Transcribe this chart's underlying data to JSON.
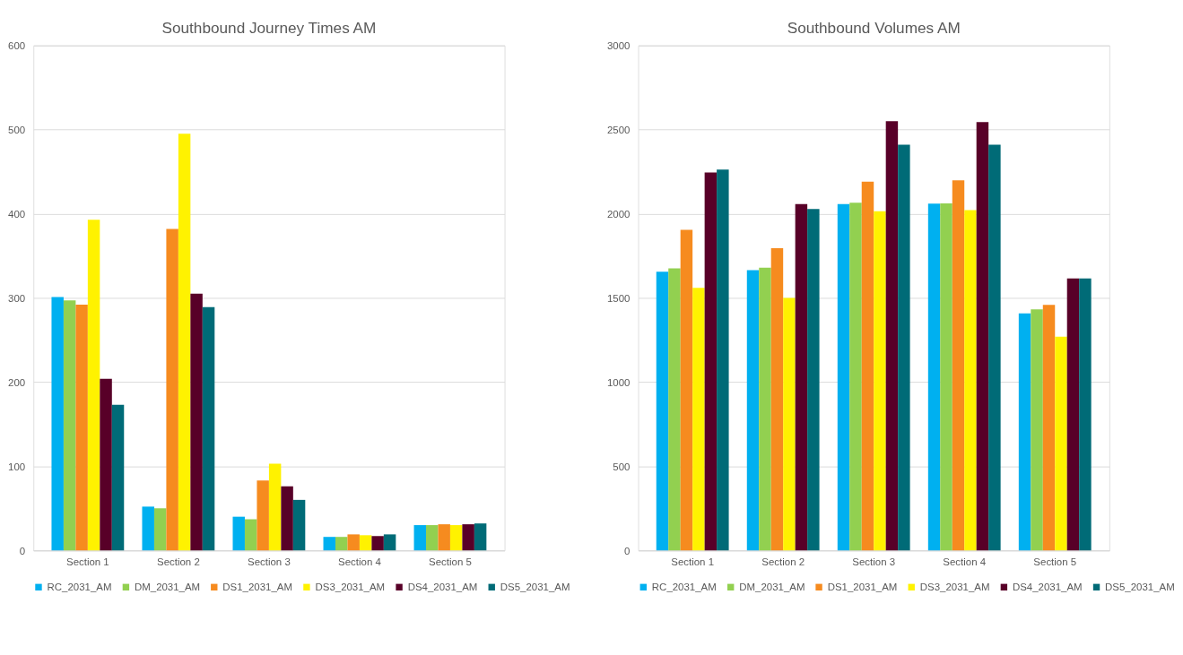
{
  "chart_data": [
    {
      "type": "bar",
      "title": "Southbound Journey Times AM",
      "categories": [
        "Section 1",
        "Section 2",
        "Section 3",
        "Section 4",
        "Section 5"
      ],
      "ylim": [
        0,
        600
      ],
      "yticks": [
        0,
        100,
        200,
        300,
        400,
        500,
        600
      ],
      "grid": "y",
      "legend": "bottom",
      "series": [
        {
          "name": "RC_2031_AM",
          "color": "#00b0f0",
          "values": [
            301,
            52,
            40,
            16,
            30
          ]
        },
        {
          "name": "DM_2031_AM",
          "color": "#92d050",
          "values": [
            297,
            50,
            37,
            16,
            30
          ]
        },
        {
          "name": "DS1_2031_AM",
          "color": "#f68b1f",
          "values": [
            292,
            382,
            83,
            19,
            31
          ]
        },
        {
          "name": "DS3_2031_AM",
          "color": "#fff200",
          "values": [
            393,
            495,
            103,
            18,
            30
          ]
        },
        {
          "name": "DS4_2031_AM",
          "color": "#580028",
          "values": [
            204,
            305,
            76,
            17,
            31
          ]
        },
        {
          "name": "DS5_2031_AM",
          "color": "#006b77",
          "values": [
            173,
            289,
            60,
            19,
            32
          ]
        }
      ]
    },
    {
      "type": "bar",
      "title": "Southbound Volumes AM",
      "categories": [
        "Section 1",
        "Section 2",
        "Section 3",
        "Section 4",
        "Section 5"
      ],
      "ylim": [
        0,
        3000
      ],
      "yticks": [
        0,
        500,
        1000,
        1500,
        2000,
        2500,
        3000
      ],
      "grid": "y",
      "legend": "bottom",
      "series": [
        {
          "name": "RC_2031_AM",
          "color": "#00b0f0",
          "values": [
            1655,
            1665,
            2058,
            2060,
            1408
          ]
        },
        {
          "name": "DM_2031_AM",
          "color": "#92d050",
          "values": [
            1675,
            1680,
            2065,
            2062,
            1432
          ]
        },
        {
          "name": "DS1_2031_AM",
          "color": "#f68b1f",
          "values": [
            1905,
            1795,
            2190,
            2198,
            1458
          ]
        },
        {
          "name": "DS3_2031_AM",
          "color": "#fff200",
          "values": [
            1560,
            1500,
            2015,
            2022,
            1270
          ]
        },
        {
          "name": "DS4_2031_AM",
          "color": "#580028",
          "values": [
            2245,
            2058,
            2550,
            2545,
            1615
          ]
        },
        {
          "name": "DS5_2031_AM",
          "color": "#006b77",
          "values": [
            2262,
            2028,
            2410,
            2410,
            1615
          ]
        }
      ]
    }
  ]
}
